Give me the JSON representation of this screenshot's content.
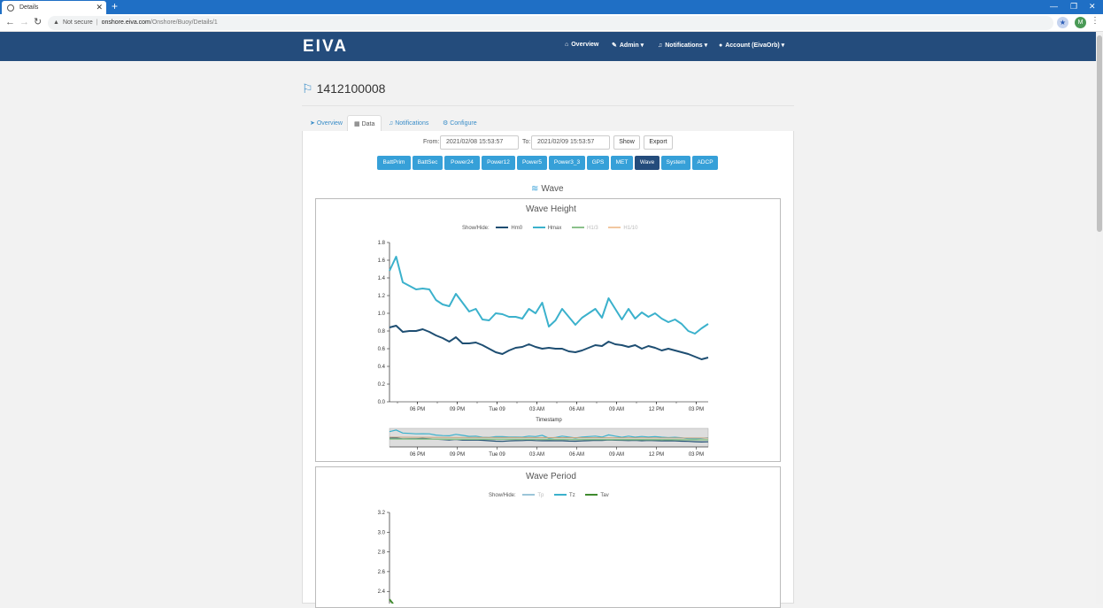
{
  "browser": {
    "tab_title": "Details",
    "security": "Not secure",
    "url_host": "onshore.eiva.com",
    "url_path": "/Onshore/Buoy/Details/1",
    "profile_initial": "M"
  },
  "nav": {
    "logo": "EIVA",
    "items": [
      "Overview",
      "Admin",
      "Notifications",
      "Account (EivaOrb)"
    ]
  },
  "page": {
    "title": "1412100008",
    "tabs": [
      "Overview",
      "Data",
      "Notifications",
      "Configure"
    ],
    "active_tab": "Data"
  },
  "filter": {
    "from_label": "From:",
    "from_value": "2021/02/08 15:53:57",
    "to_label": "To:",
    "to_value": "2021/02/09 15:53:57",
    "show": "Show",
    "export": "Export"
  },
  "data_buttons": [
    "BattPrim",
    "BattSec",
    "Power24",
    "Power12",
    "Power5",
    "Power3_3",
    "GPS",
    "MET",
    "Wave",
    "System",
    "ADCP"
  ],
  "active_data_button": "Wave",
  "section_title": "Wave",
  "colors": {
    "hm0": "#1e4e72",
    "hmax": "#3bb1cc",
    "h13": "#8bc18b",
    "h110": "#f2c7a0",
    "tp": "#9cc5d8",
    "tz": "#3bb1cc",
    "tav": "#3f8a2e",
    "nav": "#244c7c",
    "button": "#36a0d8"
  },
  "chart_data": [
    {
      "type": "line",
      "title": "Wave Height",
      "legend_label": "Show/Hide:",
      "xlabel": "Timestamp",
      "x_ticks": [
        "06 PM",
        "09 PM",
        "Tue 09",
        "03 AM",
        "06 AM",
        "09 AM",
        "12 PM",
        "03 PM"
      ],
      "y_ticks": [
        "0.0",
        "0.2",
        "0.4",
        "0.6",
        "0.8",
        "1.0",
        "1.2",
        "1.4",
        "1.6",
        "1.8"
      ],
      "ylim": [
        0,
        1.8
      ],
      "x_hours": [
        0,
        24
      ],
      "series": [
        {
          "name": "Hm0",
          "visible": true,
          "x": [
            0,
            0.5,
            1,
            1.5,
            2,
            2.5,
            3,
            3.5,
            4,
            4.5,
            5,
            5.5,
            6,
            6.5,
            7,
            7.5,
            8,
            8.5,
            9,
            9.5,
            10,
            10.5,
            11,
            11.5,
            12,
            12.5,
            13,
            13.5,
            14,
            14.5,
            15,
            15.5,
            16,
            16.5,
            17,
            17.5,
            18,
            18.5,
            19,
            19.5,
            20,
            20.5,
            21,
            21.5,
            22,
            22.5,
            23,
            23.5,
            24
          ],
          "values": [
            0.84,
            0.86,
            0.79,
            0.8,
            0.8,
            0.82,
            0.79,
            0.75,
            0.72,
            0.68,
            0.73,
            0.66,
            0.66,
            0.67,
            0.64,
            0.6,
            0.56,
            0.54,
            0.58,
            0.61,
            0.62,
            0.65,
            0.62,
            0.6,
            0.61,
            0.6,
            0.6,
            0.57,
            0.56,
            0.58,
            0.61,
            0.64,
            0.63,
            0.68,
            0.65,
            0.64,
            0.62,
            0.64,
            0.6,
            0.63,
            0.61,
            0.58,
            0.6,
            0.58,
            0.56,
            0.54,
            0.51,
            0.48,
            0.5
          ]
        },
        {
          "name": "Hmax",
          "visible": true,
          "x": [
            0,
            0.5,
            1,
            1.5,
            2,
            2.5,
            3,
            3.5,
            4,
            4.5,
            5,
            5.5,
            6,
            6.5,
            7,
            7.5,
            8,
            8.5,
            9,
            9.5,
            10,
            10.5,
            11,
            11.5,
            12,
            12.5,
            13,
            13.5,
            14,
            14.5,
            15,
            15.5,
            16,
            16.5,
            17,
            17.5,
            18,
            18.5,
            19,
            19.5,
            20,
            20.5,
            21,
            21.5,
            22,
            22.5,
            23,
            23.5,
            24
          ],
          "values": [
            1.48,
            1.64,
            1.35,
            1.31,
            1.27,
            1.28,
            1.27,
            1.15,
            1.1,
            1.08,
            1.22,
            1.12,
            1.02,
            1.05,
            0.93,
            0.92,
            1.0,
            0.99,
            0.96,
            0.96,
            0.94,
            1.05,
            1.0,
            1.12,
            0.85,
            0.92,
            1.05,
            0.96,
            0.87,
            0.95,
            1.0,
            1.05,
            0.95,
            1.17,
            1.05,
            0.93,
            1.05,
            0.94,
            1.01,
            0.96,
            1.0,
            0.94,
            0.9,
            0.93,
            0.88,
            0.8,
            0.77,
            0.83,
            0.88
          ]
        },
        {
          "name": "H1/3",
          "visible": false
        },
        {
          "name": "H1/10",
          "visible": false
        }
      ]
    },
    {
      "type": "line",
      "title": "Wave Period",
      "legend_label": "Show/Hide:",
      "y_ticks": [
        "2.4",
        "2.6",
        "2.8",
        "3.0",
        "3.2"
      ],
      "series": [
        {
          "name": "Tp",
          "visible": false
        },
        {
          "name": "Tz",
          "visible": true
        },
        {
          "name": "Tav",
          "visible": true
        }
      ]
    }
  ]
}
